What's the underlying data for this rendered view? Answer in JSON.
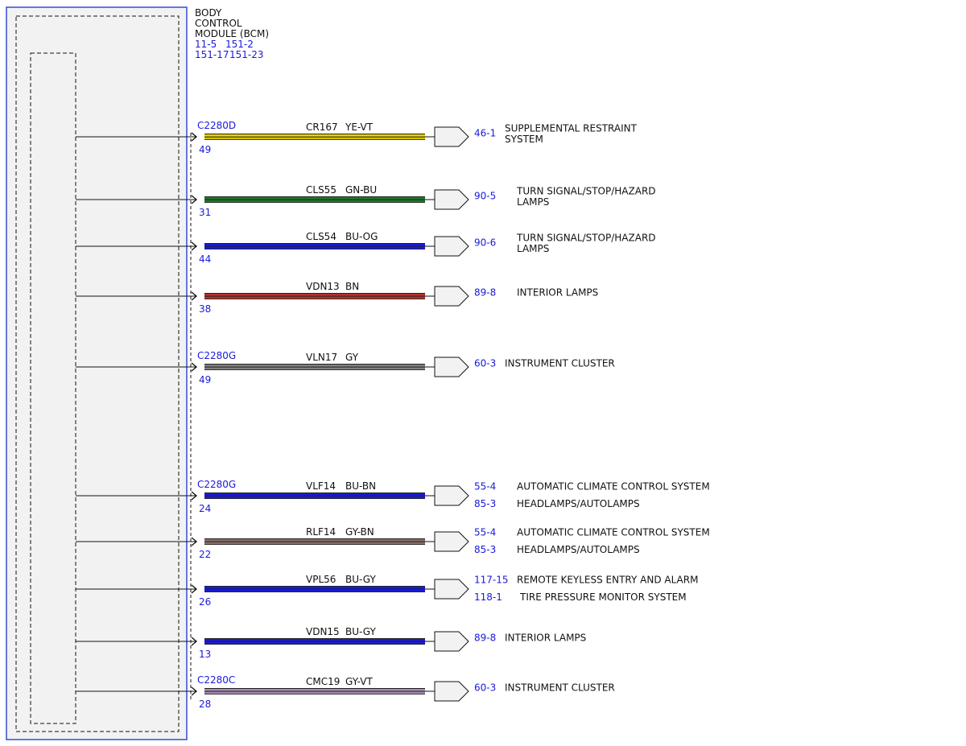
{
  "module": {
    "title_lines": [
      "BODY",
      "CONTROL",
      "MODULE (BCM)"
    ],
    "refs": [
      [
        "11-5",
        "151-2"
      ],
      [
        "151-17",
        "151-23"
      ]
    ]
  },
  "colors": {
    "border_blue": "#2b3fd6",
    "ref_blue": "#1a1adc",
    "module_fill": "#f2f2f2",
    "wire": {
      "YE-VT": [
        "#e8d400",
        "#d6c000"
      ],
      "GN-BU": [
        "#1e7a2a",
        "#1e7a2a"
      ],
      "BU-OG": [
        "#1a1adc",
        "#1a1adc"
      ],
      "BN": [
        "#b8322a",
        "#b8322a"
      ],
      "GY": [
        "#808080",
        "#808080"
      ],
      "BU-BN": [
        "#1a1adc",
        "#1a1adc"
      ],
      "GY-BN": [
        "#8a6e66",
        "#8a6e66"
      ],
      "BU-GY": [
        "#1a1adc",
        "#1a1adc"
      ],
      "GY-VT": [
        "#a48ab0",
        "#a48ab0"
      ]
    }
  },
  "circuits": [
    {
      "connector": "C2280D",
      "pin": "49",
      "circuit": "CR167",
      "color": "YE-VT",
      "dests": [
        {
          "ref": "46-1",
          "label_lines": [
            "SUPPLEMENTAL RESTRAINT",
            "SYSTEM"
          ]
        }
      ]
    },
    {
      "connector": "",
      "pin": "31",
      "circuit": "CLS55",
      "color": "GN-BU",
      "dests": [
        {
          "ref": "90-5",
          "label_lines": [
            "TURN SIGNAL/STOP/HAZARD",
            "LAMPS"
          ]
        }
      ]
    },
    {
      "connector": "",
      "pin": "44",
      "circuit": "CLS54",
      "color": "BU-OG",
      "dests": [
        {
          "ref": "90-6",
          "label_lines": [
            "TURN SIGNAL/STOP/HAZARD",
            "LAMPS"
          ]
        }
      ]
    },
    {
      "connector": "",
      "pin": "38",
      "circuit": "VDN13",
      "color": "BN",
      "dests": [
        {
          "ref": "89-8",
          "label_lines": [
            "INTERIOR LAMPS"
          ]
        }
      ]
    },
    {
      "connector": "C2280G",
      "pin": "49",
      "circuit": "VLN17",
      "color": "GY",
      "dests": [
        {
          "ref": "60-3",
          "label_lines": [
            "INSTRUMENT CLUSTER"
          ]
        }
      ]
    },
    {
      "connector": "C2280G",
      "pin": "24",
      "circuit": "VLF14",
      "color": "BU-BN",
      "dests": [
        {
          "ref": "55-4",
          "label_lines": [
            "AUTOMATIC CLIMATE CONTROL SYSTEM"
          ]
        },
        {
          "ref": "85-3",
          "label_lines": [
            "HEADLAMPS/AUTOLAMPS"
          ]
        }
      ]
    },
    {
      "connector": "",
      "pin": "22",
      "circuit": "RLF14",
      "color": "GY-BN",
      "dests": [
        {
          "ref": "55-4",
          "label_lines": [
            "AUTOMATIC CLIMATE CONTROL SYSTEM"
          ]
        },
        {
          "ref": "85-3",
          "label_lines": [
            "HEADLAMPS/AUTOLAMPS"
          ]
        }
      ]
    },
    {
      "connector": "",
      "pin": "26",
      "circuit": "VPL56",
      "color": "BU-GY",
      "dests": [
        {
          "ref": "117-15",
          "label_lines": [
            "REMOTE KEYLESS ENTRY AND ALARM"
          ]
        },
        {
          "ref": "118-1",
          "label_lines": [
            "TIRE PRESSURE MONITOR SYSTEM"
          ]
        }
      ]
    },
    {
      "connector": "",
      "pin": "13",
      "circuit": "VDN15",
      "color": "BU-GY",
      "dests": [
        {
          "ref": "89-8",
          "label_lines": [
            "INTERIOR LAMPS"
          ]
        }
      ]
    },
    {
      "connector": "C2280C",
      "pin": "28",
      "circuit": "CMC19",
      "color": "GY-VT",
      "dests": [
        {
          "ref": "60-3",
          "label_lines": [
            "INSTRUMENT CLUSTER"
          ]
        }
      ]
    }
  ]
}
